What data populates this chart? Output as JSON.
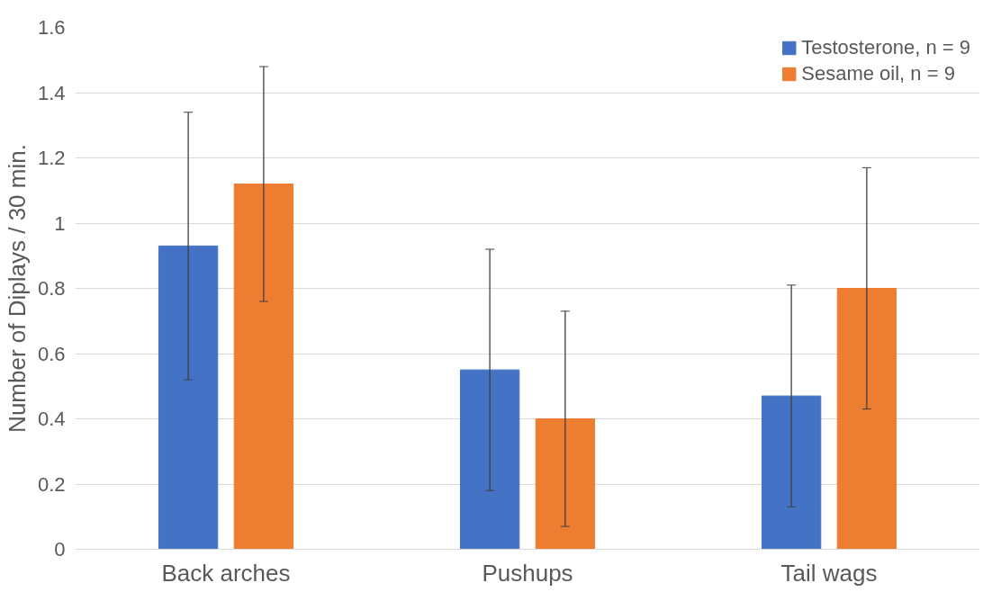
{
  "chart_data": {
    "type": "bar",
    "ylabel": "Number of Diplays / 30 min.",
    "categories": [
      "Back arches",
      "Pushups",
      "Tail wags"
    ],
    "series": [
      {
        "name": "Testosterone, n = 9",
        "color": "#4472c4",
        "values": [
          0.93,
          0.55,
          0.47
        ],
        "errors": [
          0.41,
          0.37,
          0.34
        ]
      },
      {
        "name": "Sesame oil, n = 9",
        "color": "#ed7d31",
        "values": [
          1.12,
          0.4,
          0.8
        ],
        "errors": [
          0.36,
          0.33,
          0.37
        ]
      }
    ],
    "ylim": [
      0,
      1.6
    ],
    "yticks": [
      0,
      0.2,
      0.4,
      0.6,
      0.8,
      1,
      1.2,
      1.4,
      1.6
    ],
    "grid": "y",
    "legend": "top right"
  }
}
